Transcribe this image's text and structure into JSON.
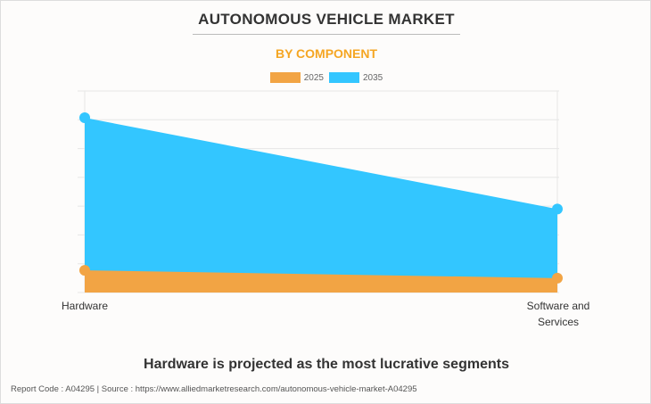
{
  "title": "AUTONOMOUS VEHICLE MARKET",
  "subtitle": "BY COMPONENT",
  "headline": "Hardware is projected as the most lucrative segments",
  "source": "Report Code : A04295  |  Source : https://www.alliedmarketresearch.com/autonomous-vehicle-market-A04295",
  "colors": {
    "2025": "#f2a444",
    "2035": "#33c6ff",
    "title": "#333333",
    "subtitle": "#f5a623"
  },
  "chart_data": {
    "type": "area",
    "categories": [
      "Hardware",
      "Software and Services"
    ],
    "category_lines": [
      [
        "Hardware"
      ],
      [
        "Software and",
        "Services"
      ]
    ],
    "series": [
      {
        "name": "2025",
        "values": [
          0.77,
          0.5
        ]
      },
      {
        "name": "2035",
        "values": [
          6.07,
          2.9
        ]
      }
    ],
    "ylim": [
      0,
      7
    ],
    "y_ticks_shown": false,
    "grid": true,
    "legend": "top-center",
    "xlabel": "",
    "ylabel": ""
  }
}
